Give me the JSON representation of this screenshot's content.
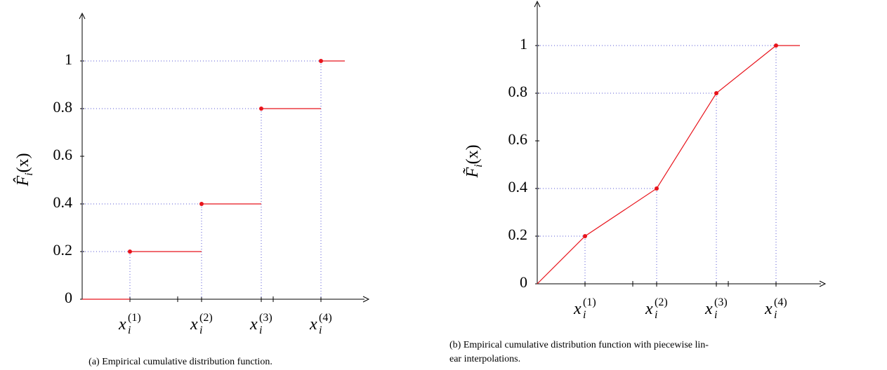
{
  "chart_data": [
    {
      "type": "step",
      "caption": [
        "(a) Empirical cumulative distribution function."
      ],
      "ylabel": {
        "base": "F̂",
        "sub": "i",
        "tail": "(x)"
      },
      "x": [
        0,
        1,
        2.5,
        3.75,
        5
      ],
      "values": [
        0,
        0.2,
        0.4,
        0.8,
        1
      ],
      "x_end": 5.5,
      "color": "#e8141c",
      "guide_color": "#5a5ad6",
      "xlim": [
        0,
        6
      ],
      "ylim": [
        0,
        1.2
      ],
      "xticks": [
        {
          "value": 1,
          "label": {
            "base": "x",
            "sub": "i",
            "sup": "(1)"
          }
        },
        {
          "value": 2.5,
          "label": {
            "base": "x",
            "sub": "i",
            "sup": "(2)"
          }
        },
        {
          "value": 3.75,
          "label": {
            "base": "x",
            "sub": "i",
            "sup": "(3)"
          }
        },
        {
          "value": 5,
          "label": {
            "base": "x",
            "sub": "i",
            "sup": "(4)"
          }
        }
      ],
      "minor_xticks": [
        2,
        4
      ],
      "yticks": [
        0,
        0.2,
        0.4,
        0.6,
        0.8,
        1
      ]
    },
    {
      "type": "line",
      "caption": [
        "(b) Empirical cumulative distribution function with piecewise lin-",
        "ear interpolations."
      ],
      "ylabel": {
        "base": "F̃",
        "sub": "i",
        "tail": "(x)"
      },
      "x": [
        0,
        1,
        2.5,
        3.75,
        5
      ],
      "values": [
        0,
        0.2,
        0.4,
        0.8,
        1
      ],
      "x_end": 5.5,
      "color": "#e8141c",
      "guide_color": "#5a5ad6",
      "xlim": [
        0,
        6
      ],
      "ylim": [
        0,
        1.2
      ],
      "xticks": [
        {
          "value": 1,
          "label": {
            "base": "x",
            "sub": "i",
            "sup": "(1)"
          }
        },
        {
          "value": 2.5,
          "label": {
            "base": "x",
            "sub": "i",
            "sup": "(2)"
          }
        },
        {
          "value": 3.75,
          "label": {
            "base": "x",
            "sub": "i",
            "sup": "(3)"
          }
        },
        {
          "value": 5,
          "label": {
            "base": "x",
            "sub": "i",
            "sup": "(4)"
          }
        }
      ],
      "minor_xticks": [
        2,
        4
      ],
      "yticks": [
        0,
        0.2,
        0.4,
        0.6,
        0.8,
        1
      ]
    }
  ]
}
